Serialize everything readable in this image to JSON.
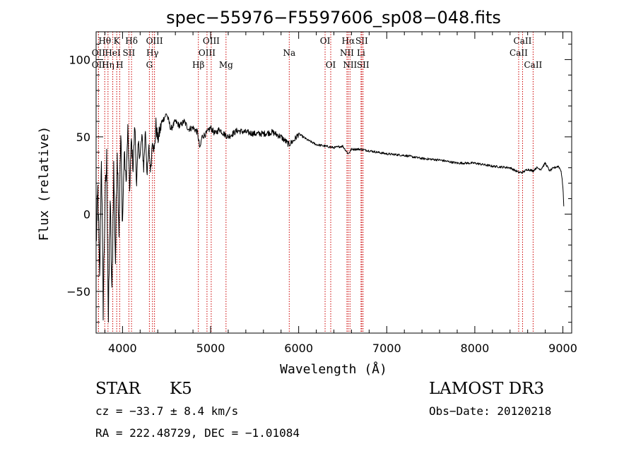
{
  "chart_data": {
    "type": "line",
    "title": "spec−55976−F5597606_sp08−048.fits",
    "xlabel": "Wavelength (Å)",
    "ylabel": "Flux (relative)",
    "xlim": [
      3700,
      9100
    ],
    "ylim": [
      -77,
      118
    ],
    "xticks": [
      4000,
      5000,
      6000,
      7000,
      8000,
      9000
    ],
    "xtick_labels": [
      "4000",
      "5000",
      "6000",
      "7000",
      "8000",
      "9000"
    ],
    "yticks": [
      -50,
      0,
      50,
      100
    ],
    "ytick_labels": [
      "−50",
      "0",
      "50",
      "100"
    ],
    "line_color": "#000000",
    "marker_color": "#cc0000",
    "series": [
      {
        "name": "flux",
        "x": [
          3700,
          3720,
          3740,
          3760,
          3780,
          3800,
          3820,
          3840,
          3860,
          3880,
          3900,
          3920,
          3940,
          3960,
          3980,
          4000,
          4020,
          4040,
          4060,
          4080,
          4100,
          4120,
          4140,
          4160,
          4180,
          4200,
          4220,
          4240,
          4260,
          4280,
          4300,
          4320,
          4340,
          4360,
          4380,
          4400,
          4450,
          4500,
          4550,
          4600,
          4650,
          4700,
          4750,
          4800,
          4850,
          4880,
          4900,
          4950,
          5000,
          5050,
          5100,
          5150,
          5200,
          5300,
          5400,
          5500,
          5600,
          5700,
          5800,
          5890,
          5950,
          6000,
          6100,
          6200,
          6300,
          6400,
          6500,
          6563,
          6600,
          6700,
          6800,
          6900,
          7000,
          7200,
          7400,
          7600,
          7800,
          8000,
          8200,
          8400,
          8498,
          8542,
          8600,
          8662,
          8700,
          8750,
          8800,
          8850,
          8900,
          8950,
          8980,
          9000,
          9010
        ],
        "y": [
          -20,
          15,
          -45,
          40,
          -60,
          5,
          35,
          -70,
          10,
          -55,
          30,
          -30,
          45,
          -10,
          50,
          -5,
          40,
          20,
          55,
          15,
          48,
          30,
          58,
          20,
          45,
          38,
          50,
          30,
          55,
          25,
          42,
          28,
          50,
          40,
          58,
          48,
          60,
          65,
          55,
          60,
          57,
          60,
          55,
          56,
          53,
          42,
          50,
          52,
          56,
          52,
          55,
          52,
          50,
          54,
          53,
          52,
          52,
          53,
          50,
          45,
          48,
          52,
          48,
          45,
          44,
          43,
          44,
          39,
          42,
          42,
          41,
          40,
          39,
          38,
          36,
          35,
          33,
          33,
          31,
          30,
          27,
          27,
          29,
          28,
          30,
          29,
          33,
          28,
          30,
          31,
          28,
          18,
          5
        ]
      }
    ],
    "lines": [
      {
        "label": "Hθ",
        "wl": 3798,
        "row": 1
      },
      {
        "label": "OII",
        "wl": 3727,
        "row": 2
      },
      {
        "label": "Hη",
        "wl": 3835,
        "row": 3
      },
      {
        "label": "OII",
        "wl": 3727,
        "row": 3
      },
      {
        "label": "HeI",
        "wl": 3889,
        "row": 2
      },
      {
        "label": "K",
        "wl": 3934,
        "row": 1
      },
      {
        "label": "H",
        "wl": 3968,
        "row": 3
      },
      {
        "label": "SII",
        "wl": 4072,
        "row": 2
      },
      {
        "label": "Hδ",
        "wl": 4102,
        "row": 1
      },
      {
        "label": "OIII",
        "wl": 4363,
        "row": 1
      },
      {
        "label": "Hγ",
        "wl": 4340,
        "row": 2
      },
      {
        "label": "G",
        "wl": 4305,
        "row": 3
      },
      {
        "label": "Hβ",
        "wl": 4861,
        "row": 3
      },
      {
        "label": "OIII",
        "wl": 5007,
        "row": 1
      },
      {
        "label": "OIII",
        "wl": 4959,
        "row": 2
      },
      {
        "label": "Mg",
        "wl": 5175,
        "row": 3
      },
      {
        "label": "Na",
        "wl": 5893,
        "row": 2
      },
      {
        "label": "OI",
        "wl": 6300,
        "row": 1
      },
      {
        "label": "OI",
        "wl": 6364,
        "row": 3
      },
      {
        "label": "Hα",
        "wl": 6563,
        "row": 1
      },
      {
        "label": "NII",
        "wl": 6548,
        "row": 2
      },
      {
        "label": "NII",
        "wl": 6583,
        "row": 3
      },
      {
        "label": "SII",
        "wl": 6716,
        "row": 1
      },
      {
        "label": "Li",
        "wl": 6708,
        "row": 2
      },
      {
        "label": "SII",
        "wl": 6731,
        "row": 3
      },
      {
        "label": "CaII",
        "wl": 8542,
        "row": 1
      },
      {
        "label": "CaII",
        "wl": 8498,
        "row": 2
      },
      {
        "label": "CaII",
        "wl": 8662,
        "row": 3
      }
    ]
  },
  "info": {
    "class": "STAR",
    "subclass": "K5",
    "survey": "LAMOST DR3",
    "cz": "cz = −33.7 ± 8.4 km/s",
    "obs_date": "Obs−Date: 20120218",
    "radec": "RA = 222.48729, DEC =  −1.01084"
  }
}
